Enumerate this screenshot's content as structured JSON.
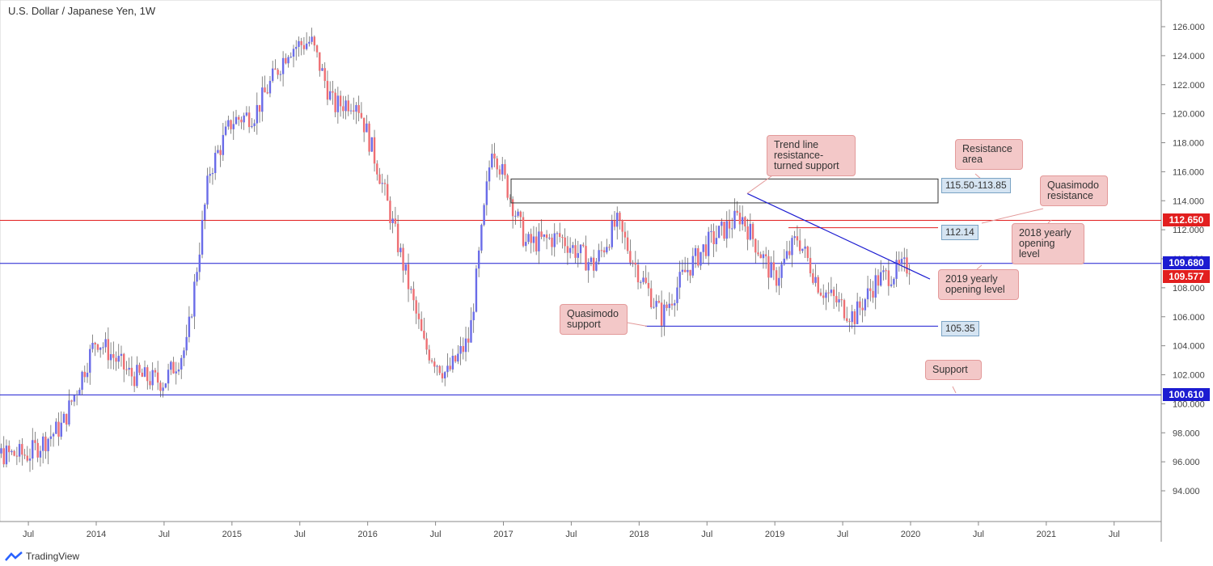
{
  "header": {
    "title": "U.S. Dollar / Japanese Yen, 1W"
  },
  "brand": {
    "name": "TradingView"
  },
  "colors": {
    "up": "#6a6ce8",
    "down": "#ee6f73",
    "red_level": "#e21f1f",
    "blue_level": "#1c1cd1",
    "box_fill": "#ffffff"
  },
  "price_badges": [
    {
      "label": "112.650",
      "price": 112.65,
      "color": "#e21f1f"
    },
    {
      "label": "109.680",
      "price": 109.68,
      "color": "#1c1cd1"
    },
    {
      "label": "109.577",
      "price": 109.577,
      "color": "#e21f1f"
    },
    {
      "label": "100.610",
      "price": 100.61,
      "color": "#1c1cd1"
    }
  ],
  "level_labels": [
    {
      "text": "115.50-113.85"
    },
    {
      "text": "112.14"
    },
    {
      "text": "105.35"
    }
  ],
  "annotations": {
    "trendline": "Trend line resistance-turned support",
    "resistance_area": "Resistance area",
    "qm_resistance": "Quasimodo resistance",
    "opening_2018": "2018 yearly opening level",
    "opening_2019": "2019 yearly opening level",
    "qm_support": "Quasimodo support",
    "support": "Support"
  },
  "chart_data": {
    "type": "line",
    "title": "U.S. Dollar / Japanese Yen, 1W",
    "x_ticks": [
      "Jul",
      "2014",
      "Jul",
      "2015",
      "Jul",
      "2016",
      "Jul",
      "2017",
      "Jul",
      "2018",
      "Jul",
      "2019",
      "Jul",
      "2020",
      "Jul",
      "2021",
      "Jul"
    ],
    "y_ticks": [
      "94.000",
      "96.000",
      "98.000",
      "100.000",
      "102.000",
      "104.000",
      "106.000",
      "108.000",
      "110.000",
      "112.000",
      "114.000",
      "116.000",
      "118.000",
      "120.000",
      "122.000",
      "124.000",
      "126.000"
    ],
    "ylim": [
      92.0,
      127.0
    ],
    "x": [
      "2013-07",
      "2013-10",
      "2014-01",
      "2014-04",
      "2014-07",
      "2014-09",
      "2014-11",
      "2015-01",
      "2015-03",
      "2015-06",
      "2015-08",
      "2015-10",
      "2015-12",
      "2016-02",
      "2016-04",
      "2016-06",
      "2016-08",
      "2016-10",
      "2016-12",
      "2017-03",
      "2017-06",
      "2017-09",
      "2017-11",
      "2018-01",
      "2018-03",
      "2018-05",
      "2018-07",
      "2018-10",
      "2019-01",
      "2019-03",
      "2019-05",
      "2019-08",
      "2019-10",
      "2020-01"
    ],
    "series": [
      {
        "values": [
          96.5,
          98.5,
          104.5,
          102.0,
          101.5,
          104.0,
          116.0,
          119.5,
          120.0,
          124.5,
          125.0,
          120.5,
          121.0,
          116.0,
          110.0,
          104.0,
          102.0,
          104.5,
          118.0,
          111.0,
          111.5,
          109.5,
          112.5,
          109.0,
          106.0,
          109.0,
          111.0,
          113.0,
          108.5,
          111.5,
          108.0,
          106.0,
          108.5,
          109.6
        ]
      }
    ]
  }
}
